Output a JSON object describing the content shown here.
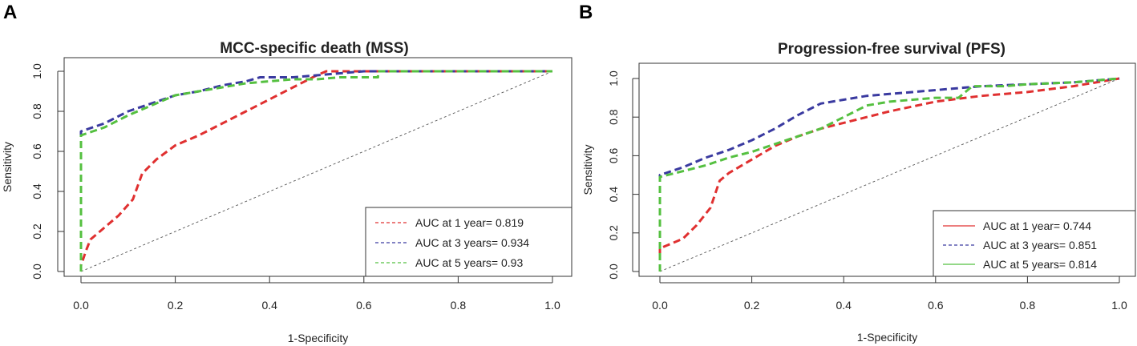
{
  "panels": {
    "a": {
      "letter": "A"
    },
    "b": {
      "letter": "B"
    }
  },
  "chart_data": [
    {
      "id": "a",
      "type": "line",
      "title": "MCC-specific death (MSS)",
      "xlabel": "1-Specificity",
      "ylabel": "Sensitivity",
      "xlim": [
        0,
        1
      ],
      "ylim": [
        0,
        1
      ],
      "xticks": [
        "0.0",
        "0.2",
        "0.4",
        "0.6",
        "0.8",
        "1.0"
      ],
      "yticks": [
        "0.0",
        "0.2",
        "0.4",
        "0.6",
        "0.8",
        "1.0"
      ],
      "legend_position": "bottom-right",
      "diagonal_reference": true,
      "series": [
        {
          "name": "AUC at 1 year= 0.819",
          "color": "#e03030",
          "dash": true,
          "legend_dash": true,
          "x": [
            0.0,
            0.0,
            0.01,
            0.02,
            0.05,
            0.08,
            0.11,
            0.13,
            0.16,
            0.2,
            0.25,
            0.3,
            0.35,
            0.4,
            0.45,
            0.5,
            0.52,
            0.6,
            0.7,
            0.8,
            0.9,
            1.0
          ],
          "y": [
            0.0,
            0.03,
            0.1,
            0.16,
            0.22,
            0.28,
            0.36,
            0.49,
            0.56,
            0.63,
            0.68,
            0.74,
            0.8,
            0.86,
            0.92,
            0.98,
            1.0,
            1.0,
            1.0,
            1.0,
            1.0,
            1.0
          ]
        },
        {
          "name": "AUC at 3 years= 0.934",
          "color": "#3a3aa0",
          "dash": true,
          "legend_dash": true,
          "x": [
            0.0,
            0.0,
            0.05,
            0.1,
            0.15,
            0.2,
            0.25,
            0.3,
            0.35,
            0.38,
            0.45,
            0.5,
            0.55,
            0.6,
            0.7,
            0.8,
            0.9,
            1.0
          ],
          "y": [
            0.0,
            0.7,
            0.74,
            0.8,
            0.84,
            0.88,
            0.9,
            0.93,
            0.95,
            0.97,
            0.97,
            0.98,
            0.99,
            1.0,
            1.0,
            1.0,
            1.0,
            1.0
          ]
        },
        {
          "name": "AUC at 5 years= 0.93",
          "color": "#55c040",
          "dash": true,
          "legend_dash": true,
          "x": [
            0.0,
            0.0,
            0.05,
            0.1,
            0.15,
            0.2,
            0.25,
            0.3,
            0.35,
            0.4,
            0.45,
            0.5,
            0.55,
            0.6,
            0.63,
            0.63,
            0.7,
            0.8,
            0.9,
            1.0
          ],
          "y": [
            0.0,
            0.68,
            0.72,
            0.78,
            0.83,
            0.88,
            0.9,
            0.92,
            0.94,
            0.95,
            0.96,
            0.96,
            0.97,
            0.97,
            0.97,
            1.0,
            1.0,
            1.0,
            1.0,
            1.0
          ]
        }
      ]
    },
    {
      "id": "b",
      "type": "line",
      "title": "Progression-free survival (PFS)",
      "xlabel": "1-Specificity",
      "ylabel": "Sensitivity",
      "xlim": [
        0,
        1
      ],
      "ylim": [
        0,
        1
      ],
      "xticks": [
        "0.0",
        "0.2",
        "0.4",
        "0.6",
        "0.8",
        "1.0"
      ],
      "yticks": [
        "0.0",
        "0.2",
        "0.4",
        "0.6",
        "0.8",
        "1.0"
      ],
      "legend_position": "bottom-right",
      "diagonal_reference": true,
      "series": [
        {
          "name": "AUC at 1 year= 0.744",
          "color": "#e03030",
          "dash": true,
          "legend_dash": false,
          "x": [
            0.0,
            0.0,
            0.02,
            0.05,
            0.08,
            0.11,
            0.13,
            0.15,
            0.2,
            0.25,
            0.3,
            0.35,
            0.4,
            0.45,
            0.5,
            0.6,
            0.7,
            0.8,
            0.9,
            1.0
          ],
          "y": [
            0.08,
            0.12,
            0.14,
            0.17,
            0.24,
            0.33,
            0.47,
            0.51,
            0.58,
            0.65,
            0.7,
            0.74,
            0.77,
            0.8,
            0.83,
            0.88,
            0.91,
            0.93,
            0.96,
            1.0
          ]
        },
        {
          "name": "AUC at 3 years= 0.851",
          "color": "#3a3aa0",
          "dash": true,
          "legend_dash": true,
          "x": [
            0.0,
            0.0,
            0.05,
            0.1,
            0.15,
            0.2,
            0.25,
            0.3,
            0.35,
            0.4,
            0.45,
            0.5,
            0.6,
            0.7,
            0.8,
            0.9,
            1.0
          ],
          "y": [
            0.0,
            0.5,
            0.54,
            0.59,
            0.63,
            0.68,
            0.74,
            0.81,
            0.87,
            0.89,
            0.91,
            0.92,
            0.94,
            0.96,
            0.97,
            0.98,
            1.0
          ]
        },
        {
          "name": "AUC at 5 years= 0.814",
          "color": "#55c040",
          "dash": true,
          "legend_dash": false,
          "x": [
            0.0,
            0.0,
            0.05,
            0.1,
            0.15,
            0.2,
            0.25,
            0.3,
            0.35,
            0.4,
            0.45,
            0.5,
            0.55,
            0.6,
            0.65,
            0.68,
            0.75,
            0.8,
            0.9,
            1.0
          ],
          "y": [
            0.0,
            0.49,
            0.52,
            0.55,
            0.59,
            0.62,
            0.66,
            0.7,
            0.74,
            0.8,
            0.86,
            0.88,
            0.89,
            0.9,
            0.9,
            0.96,
            0.96,
            0.97,
            0.98,
            1.0
          ]
        }
      ]
    }
  ]
}
